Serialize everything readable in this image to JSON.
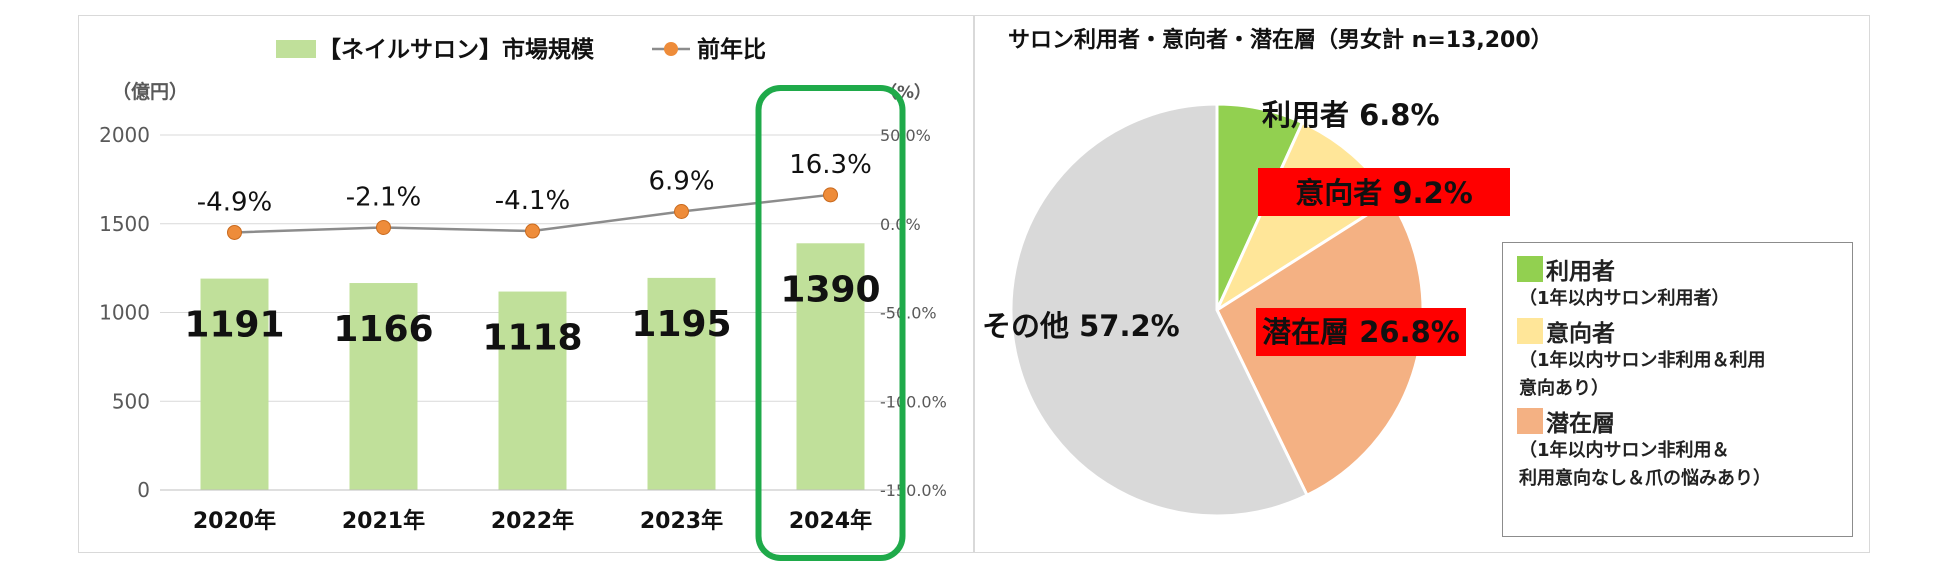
{
  "chart_data": [
    {
      "type": "bar",
      "categories": [
        "2020年",
        "2021年",
        "2022年",
        "2023年",
        "2024年"
      ],
      "series": [
        {
          "name": "【ネイルサロン】市場規模",
          "type": "bar",
          "axis": "left",
          "values": [
            1191,
            1166,
            1118,
            1195,
            1390
          ],
          "data_labels": [
            "1191",
            "1166",
            "1118",
            "1195",
            "1390"
          ]
        },
        {
          "name": "前年比",
          "type": "line",
          "axis": "right",
          "values": [
            -4.9,
            -2.1,
            -4.1,
            6.9,
            16.3
          ],
          "data_labels": [
            "-4.9%",
            "-2.1%",
            "-4.1%",
            "6.9%",
            "16.3%"
          ]
        }
      ],
      "left_axis": {
        "unit": "（億円）",
        "range": [
          0,
          2000
        ],
        "ticks": [
          0,
          500,
          1000,
          1500,
          2000
        ],
        "tick_labels": [
          "0",
          "500",
          "1000",
          "1500",
          "2000"
        ]
      },
      "right_axis": {
        "unit": "（%）",
        "range": [
          -150,
          50
        ],
        "ticks": [
          -150,
          -100,
          -50,
          0,
          50
        ],
        "tick_labels": [
          "-150.0%",
          "-100.0%",
          "-50.0%",
          "0.0%",
          "50.0%"
        ]
      },
      "grid": true,
      "legend": "top",
      "highlight_category": "2024年",
      "colors": {
        "bar": "#c0e09a",
        "line": "#8c8c8c",
        "marker": "#ee8c3a",
        "highlight": "#1faa4a",
        "grid": "#d9d9d9"
      }
    },
    {
      "type": "pie",
      "title": "サロン利用者・意向者・潜在層（男女計 n=13,200）",
      "slices": [
        {
          "key": "user",
          "label": "利用者",
          "value": 6.8,
          "value_label": "6.8%",
          "color": "#92d050",
          "description": "（1年以内サロン利用者）"
        },
        {
          "key": "intent",
          "label": "意向者",
          "value": 9.2,
          "value_label": "9.2%",
          "color": "#ffe699",
          "description": "（1年以内サロン非利用＆利用\n意向あり）"
        },
        {
          "key": "latent",
          "label": "潜在層",
          "value": 26.8,
          "value_label": "26.8%",
          "color": "#f4b183",
          "description": "（1年以内サロン非利用＆\n利用意向なし＆爪の悩みあり）"
        },
        {
          "key": "other",
          "label": "その他",
          "value": 57.2,
          "value_label": "57.2%",
          "color": "#d9d9d9"
        }
      ],
      "start_angle": "12 o'clock",
      "direction": "clockwise",
      "legend": "right",
      "label_highlight_color": "#ff0000"
    }
  ]
}
